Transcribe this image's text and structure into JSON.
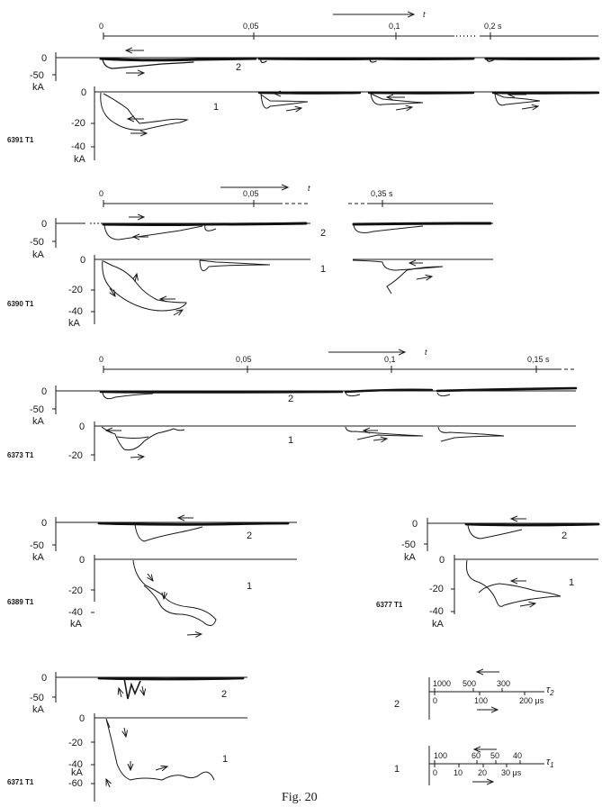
{
  "figure": {
    "caption": "Fig. 20"
  },
  "common": {
    "zero": "0",
    "m20": "-20",
    "m40": "-40",
    "m50": "-50",
    "m60": "-60",
    "ka": "kA",
    "curve1": "1",
    "curve2": "2",
    "time_symbol": "t"
  },
  "panels": [
    {
      "id": "6391 T1",
      "time_axis": [
        "0",
        "0,05",
        "0,1",
        "0,2 s"
      ]
    },
    {
      "id": "6390 T1",
      "time_axis": [
        "0",
        "0,05",
        "0,35 s"
      ]
    },
    {
      "id": "6373 T1",
      "time_axis": [
        "0",
        "0,05",
        "0,1",
        "0,15 s"
      ]
    },
    {
      "id": "6389 T1"
    },
    {
      "id": "6377 T1"
    },
    {
      "id": "6371 T1"
    }
  ],
  "scales": {
    "tau2": {
      "row": "2",
      "symbol": "τ",
      "subscript": "2",
      "top_ticks": [
        "1000",
        "500",
        "300"
      ],
      "bottom_ticks": [
        "0",
        "100",
        "200 μs"
      ]
    },
    "tau1": {
      "row": "1",
      "symbol": "τ",
      "subscript": "1",
      "top_ticks": [
        "100",
        "60",
        "50",
        "40"
      ],
      "bottom_ticks": [
        "0",
        "10",
        "20",
        "30 μs"
      ]
    }
  }
}
